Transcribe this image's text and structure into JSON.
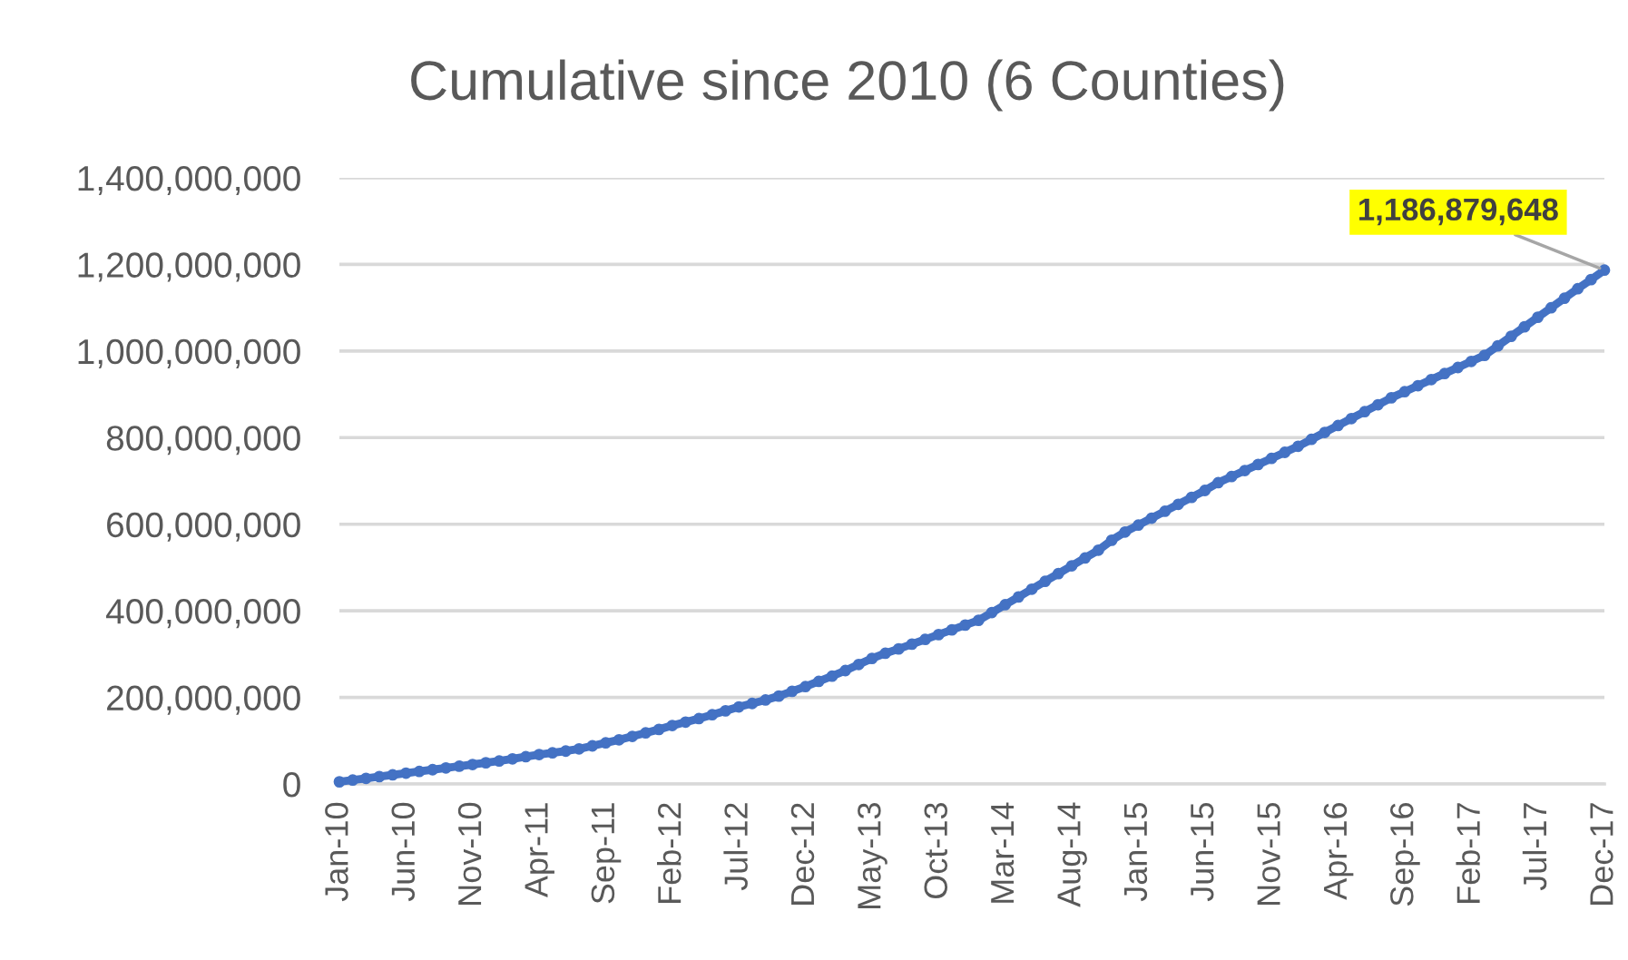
{
  "chart_data": {
    "type": "line",
    "title": "Cumulative since 2010 (6 Counties)",
    "categories": [
      "Jan-10",
      null,
      null,
      null,
      null,
      "Jun-10",
      null,
      null,
      null,
      null,
      "Nov-10",
      null,
      null,
      null,
      null,
      "Apr-11",
      null,
      null,
      null,
      null,
      "Sep-11",
      null,
      null,
      null,
      null,
      "Feb-12",
      null,
      null,
      null,
      null,
      "Jul-12",
      null,
      null,
      null,
      null,
      "Dec-12",
      null,
      null,
      null,
      null,
      "May-13",
      null,
      null,
      null,
      null,
      "Oct-13",
      null,
      null,
      null,
      null,
      "Mar-14",
      null,
      null,
      null,
      null,
      "Aug-14",
      null,
      null,
      null,
      null,
      "Jan-15",
      null,
      null,
      null,
      null,
      "Jun-15",
      null,
      null,
      null,
      null,
      "Nov-15",
      null,
      null,
      null,
      null,
      "Apr-16",
      null,
      null,
      null,
      null,
      "Sep-16",
      null,
      null,
      null,
      null,
      "Feb-17",
      null,
      null,
      null,
      null,
      "Jul-17",
      null,
      null,
      null,
      null,
      "Dec-17"
    ],
    "values": [
      5000000,
      9000000,
      13000000,
      17000000,
      21000000,
      25000000,
      29000000,
      33000000,
      37000000,
      41000000,
      45000000,
      49000000,
      53000000,
      58000000,
      63000000,
      68000000,
      72000000,
      76000000,
      81000000,
      88000000,
      95000000,
      102000000,
      110000000,
      118000000,
      126000000,
      135000000,
      143000000,
      151000000,
      160000000,
      169000000,
      178000000,
      186000000,
      194000000,
      203000000,
      214000000,
      225000000,
      237000000,
      249000000,
      262000000,
      276000000,
      290000000,
      302000000,
      312000000,
      323000000,
      334000000,
      345000000,
      356000000,
      367000000,
      378000000,
      396000000,
      414000000,
      432000000,
      450000000,
      468000000,
      486000000,
      504000000,
      522000000,
      540000000,
      563000000,
      582000000,
      598000000,
      614000000,
      630000000,
      646000000,
      662000000,
      678000000,
      696000000,
      710000000,
      724000000,
      738000000,
      752000000,
      766000000,
      780000000,
      796000000,
      812000000,
      828000000,
      844000000,
      860000000,
      876000000,
      892000000,
      906000000,
      920000000,
      934000000,
      948000000,
      962000000,
      976000000,
      990000000,
      1012000000,
      1034000000,
      1056000000,
      1078000000,
      1100000000,
      1122000000,
      1144000000,
      1165000000,
      1186879648
    ],
    "value_labels": [
      null,
      null,
      null,
      null,
      null,
      null,
      null,
      null,
      null,
      null,
      null,
      null,
      null,
      null,
      null,
      null,
      null,
      null,
      null,
      null,
      null,
      null,
      null,
      null,
      null,
      null,
      null,
      null,
      null,
      null,
      null,
      null,
      null,
      null,
      null,
      null,
      null,
      null,
      null,
      null,
      null,
      null,
      null,
      null,
      null,
      null,
      null,
      null,
      null,
      null,
      null,
      null,
      null,
      null,
      null,
      null,
      null,
      null,
      null,
      null,
      null,
      null,
      null,
      null,
      null,
      null,
      null,
      null,
      null,
      null,
      null,
      null,
      null,
      null,
      null,
      null,
      null,
      null,
      null,
      null,
      null,
      null,
      null,
      null,
      null,
      null,
      null,
      null,
      null,
      null,
      null,
      null,
      null,
      null,
      null,
      "1,186,879,648"
    ],
    "color": "#4472c4",
    "marker": "circle",
    "line_style": "solid",
    "grid": "y",
    "ylim": [
      0,
      1400000000
    ],
    "yticks": [
      0,
      {
        "value": 200000000,
        "label": "200,000,000"
      },
      {
        "value": 400000000,
        "label": "400,000,000"
      },
      {
        "value": 600000000,
        "label": "600,000,000"
      },
      {
        "value": 800000000,
        "label": "800,000,000"
      },
      {
        "value": 1000000000,
        "label": "1,000,000,000"
      },
      {
        "value": 1200000000,
        "label": "1,200,000,000"
      },
      {
        "value": 1400000000,
        "label": "1,400,000,000"
      }
    ]
  }
}
